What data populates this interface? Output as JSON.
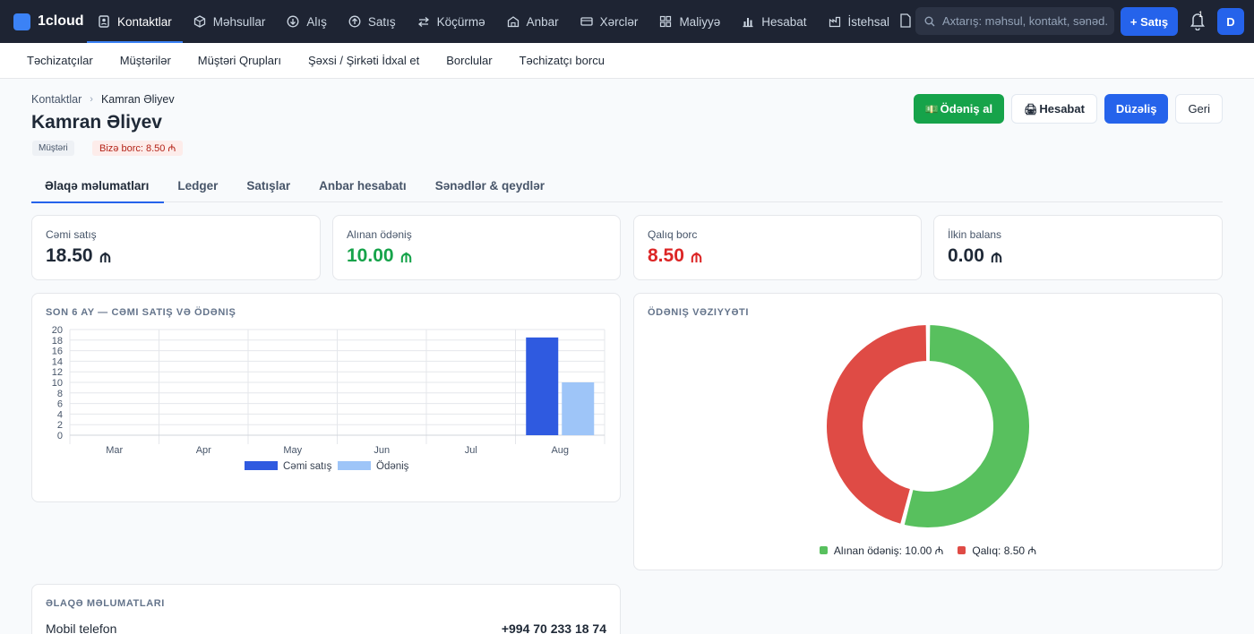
{
  "app": {
    "name": "1cloud"
  },
  "nav": {
    "items": [
      {
        "label": "Kontaktlar",
        "icon": "contacts-icon",
        "active": true
      },
      {
        "label": "Məhsullar",
        "icon": "box-icon"
      },
      {
        "label": "Alış",
        "icon": "purchase-icon"
      },
      {
        "label": "Satış",
        "icon": "sale-icon"
      },
      {
        "label": "Köçürmə",
        "icon": "transfer-icon"
      },
      {
        "label": "Anbar",
        "icon": "warehouse-icon"
      },
      {
        "label": "Xərclər",
        "icon": "expense-icon"
      },
      {
        "label": "Maliyyə",
        "icon": "finance-icon"
      },
      {
        "label": "Hesabat",
        "icon": "report-icon"
      },
      {
        "label": "İstehsal",
        "icon": "production-icon"
      }
    ],
    "search_placeholder": "Axtarış: məhsul, kontakt, sənəd...",
    "new_sale_label": "+ Satış",
    "notification_count": "1",
    "avatar_initial": "D"
  },
  "subnav": {
    "items": [
      "Təchizatçılar",
      "Müştərilər",
      "Müştəri Qrupları",
      "Şəxsi / Şirkəti İdxal et",
      "Borclular",
      "Təchizatçı borcu"
    ]
  },
  "breadcrumb": {
    "parent": "Kontaktlar",
    "current": "Kamran Əliyev"
  },
  "contact": {
    "name": "Kamran Əliyev",
    "type_badge": "Müştəri",
    "debt_badge": "Bizə borc: 8.50 ₼"
  },
  "actions": {
    "pay_label": "Ödəniş al",
    "pay_icon": "💵",
    "report_label": "Hesabat",
    "report_icon": "🖨",
    "edit_label": "Düzəliş",
    "back_label": "Geri"
  },
  "tabs": [
    "Əlaqə məlumatları",
    "Ledger",
    "Satışlar",
    "Anbar hesabatı",
    "Sənədlər & qeydlər"
  ],
  "stats": [
    {
      "label": "Cəmi satış",
      "value": "18.50",
      "color": "#1f2937"
    },
    {
      "label": "Alınan ödəniş",
      "value": "10.00",
      "color": "#16a34a"
    },
    {
      "label": "Qalıq borc",
      "value": "8.50",
      "color": "#dc2626"
    },
    {
      "label": "İlkin balans",
      "value": "0.00",
      "color": "#1f2937"
    }
  ],
  "bar_section_title": "Son 6 ay — cəmi satış və ödəniş",
  "chart_data": [
    {
      "type": "bar",
      "categories": [
        "Mar",
        "Apr",
        "May",
        "Jun",
        "Jul",
        "Aug"
      ],
      "series": [
        {
          "name": "Cəmi satış",
          "values": [
            0,
            0,
            0,
            0,
            0,
            18.5
          ],
          "color": "#2f5ae0"
        },
        {
          "name": "Ödəniş",
          "values": [
            0,
            0,
            0,
            0,
            0,
            10
          ],
          "color": "#9ec5f8"
        }
      ],
      "yticks": [
        0,
        2,
        4,
        6,
        8,
        10,
        12,
        14,
        16,
        18,
        20
      ],
      "ylim": [
        0,
        20
      ],
      "grid": true,
      "legend": "bottom"
    },
    {
      "type": "pie",
      "title": "Ödəniş vəziyyəti",
      "slices": [
        {
          "label": "Alınan ödəniş",
          "value": 10.0,
          "display": "Alınan ödəniş: 10.00 ₼",
          "color": "#58c05e"
        },
        {
          "label": "Qalıq",
          "value": 8.5,
          "display": "Qalıq: 8.50 ₼",
          "color": "#df4b45"
        }
      ],
      "legend": "bottom"
    }
  ],
  "contact_info": {
    "title": "Əlaqə məlumatları",
    "rows": [
      {
        "label": "Mobil telefon",
        "value": "+994 70 233 18 74"
      }
    ]
  },
  "colors": {
    "accent": "#2563eb",
    "success": "#16a34a",
    "danger": "#dc2626",
    "topbar": "#1e2433"
  }
}
